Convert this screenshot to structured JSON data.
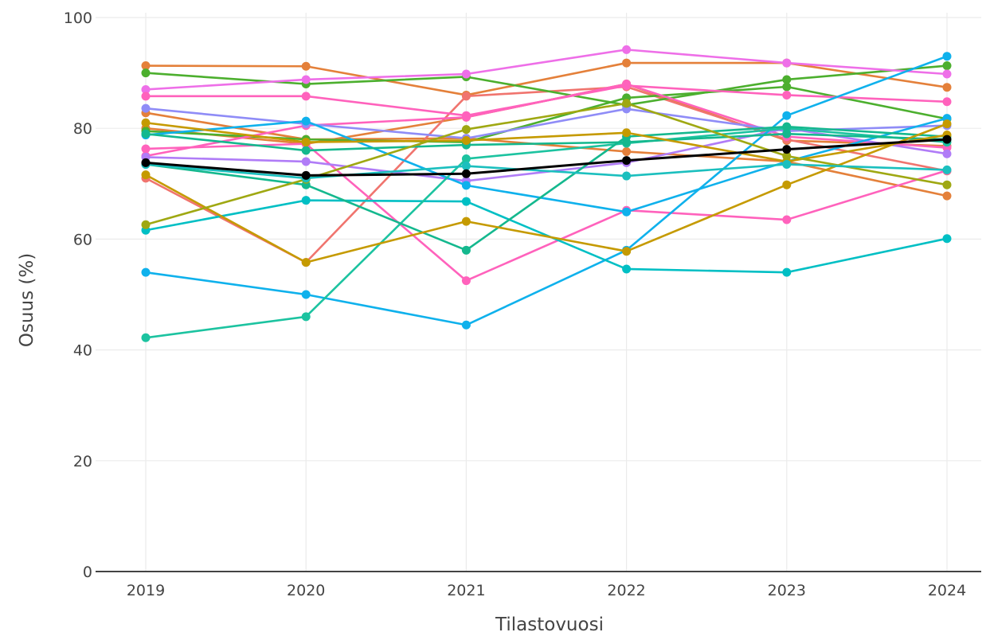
{
  "chart_data": {
    "type": "line",
    "title": "",
    "xlabel": "Tilastovuosi",
    "ylabel": "Osuus (%)",
    "ylim": [
      0,
      100
    ],
    "yticks": [
      "0",
      "20",
      "40",
      "60",
      "80",
      "100"
    ],
    "categories": [
      "2019",
      "2020",
      "2021",
      "2022",
      "2023",
      "2024"
    ],
    "grid": "on",
    "legend": "none",
    "series": [
      {
        "color": "#000000",
        "values": [
          73.8,
          71.5,
          71.8,
          74.2,
          76.2,
          78.0
        ]
      },
      {
        "color": "#E4803A",
        "values": [
          91.3,
          91.2,
          86.0,
          91.8,
          91.8,
          87.4
        ]
      },
      {
        "color": "#E4803A",
        "values": [
          82.8,
          78.0,
          78.2,
          75.8,
          74.0,
          67.8
        ]
      },
      {
        "color": "#E4803A",
        "values": [
          80.0,
          77.2,
          82.0,
          88.0,
          77.8,
          76.8
        ]
      },
      {
        "color": "#F0746E",
        "values": [
          71.0,
          55.8,
          85.8,
          87.5,
          78.0,
          72.3
        ]
      },
      {
        "color": "#4CAF2E",
        "values": [
          90.0,
          88.0,
          89.3,
          84.2,
          88.8,
          91.3
        ]
      },
      {
        "color": "#4CAF2E",
        "values": [
          79.5,
          78.0,
          77.5,
          85.5,
          87.5,
          81.7
        ]
      },
      {
        "color": "#EE6FE8",
        "values": [
          87.0,
          88.8,
          89.8,
          94.2,
          91.8,
          89.8
        ]
      },
      {
        "color": "#FF62BC",
        "values": [
          85.8,
          85.8,
          82.3,
          87.7,
          86.0,
          84.8
        ]
      },
      {
        "color": "#FF62BC",
        "values": [
          76.3,
          77.2,
          52.5,
          65.2,
          63.5,
          72.4
        ]
      },
      {
        "color": "#FF62BC",
        "values": [
          75.0,
          80.5,
          82.0,
          88.0,
          78.5,
          76.5
        ]
      },
      {
        "color": "#8F8CF7",
        "values": [
          83.6,
          80.8,
          78.2,
          83.5,
          79.5,
          80.5
        ]
      },
      {
        "color": "#B07CF7",
        "values": [
          74.8,
          74.0,
          70.5,
          73.8,
          80.0,
          75.4
        ]
      },
      {
        "color": "#0FB1EC",
        "values": [
          78.8,
          81.3,
          69.7,
          64.9,
          74.0,
          81.8
        ]
      },
      {
        "color": "#0FB1EC",
        "values": [
          54.0,
          50.0,
          44.5,
          58.0,
          82.3,
          93.0
        ]
      },
      {
        "color": "#00BFC4",
        "values": [
          61.6,
          67.0,
          66.8,
          54.6,
          54.0,
          60.1
        ]
      },
      {
        "color": "#1CC3A0",
        "values": [
          42.2,
          46.0,
          74.5,
          77.3,
          80.0,
          77.5
        ]
      },
      {
        "color": "#14B88E",
        "values": [
          73.5,
          69.8,
          58.0,
          78.5,
          80.3,
          78.5
        ]
      },
      {
        "color": "#14B88E",
        "values": [
          79.0,
          76.0,
          77.0,
          77.5,
          79.0,
          78.0
        ]
      },
      {
        "color": "#C59A00",
        "values": [
          71.6,
          55.8,
          63.2,
          57.8,
          69.8,
          80.8
        ]
      },
      {
        "color": "#C59A00",
        "values": [
          81.0,
          77.5,
          77.8,
          79.2,
          74.0,
          78.8
        ]
      },
      {
        "color": "#9FA812",
        "values": [
          62.6,
          70.8,
          79.8,
          84.5,
          75.0,
          69.8
        ]
      },
      {
        "color": "#1BBFBE",
        "values": [
          73.5,
          71.0,
          73.2,
          71.4,
          73.5,
          72.5
        ]
      }
    ]
  }
}
